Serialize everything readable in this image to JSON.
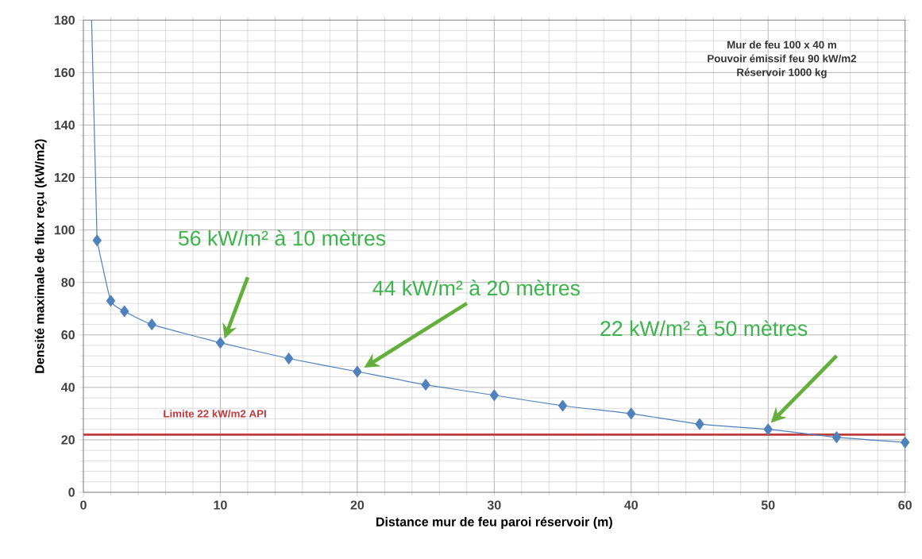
{
  "chart_data": {
    "type": "line",
    "xlabel": "Distance mur de feu paroi réservoir (m)",
    "ylabel": "Densité maximale de flux reçu (kW/m2)",
    "x": [
      1,
      2,
      3,
      5,
      10,
      15,
      20,
      25,
      30,
      35,
      40,
      45,
      50,
      55,
      60
    ],
    "series": [
      {
        "color": "#4f81bd",
        "marker": "diamond",
        "values": [
          96,
          73,
          69,
          64,
          57,
          51,
          46,
          41,
          37,
          33,
          30,
          26,
          24,
          21,
          19
        ]
      },
      {
        "color": "#4f81bd",
        "marker": "none",
        "x": [
          0.6,
          1
        ],
        "values": [
          180,
          96
        ]
      }
    ],
    "xlim": [
      0,
      60
    ],
    "xticks": [
      0,
      10,
      20,
      30,
      40,
      50,
      60
    ],
    "ylim": [
      0,
      180
    ],
    "yticks": [
      0,
      20,
      40,
      60,
      80,
      100,
      120,
      140,
      160,
      180
    ],
    "grid": true,
    "ref_lines": [
      {
        "axis": "y",
        "value": 22,
        "label": "Limite 22 kW/m2 API",
        "color": "#c0393b"
      }
    ],
    "annotations": [
      "56 kW/m² à 10 mètres",
      "44 kW/m² à 20 mètres",
      "22 kW/m² à 50 mètres",
      "Mur de feu 100 x 40 m",
      "Pouvoir émissif feu 90 kW/m2",
      "Réservoir 1000 kg"
    ]
  }
}
